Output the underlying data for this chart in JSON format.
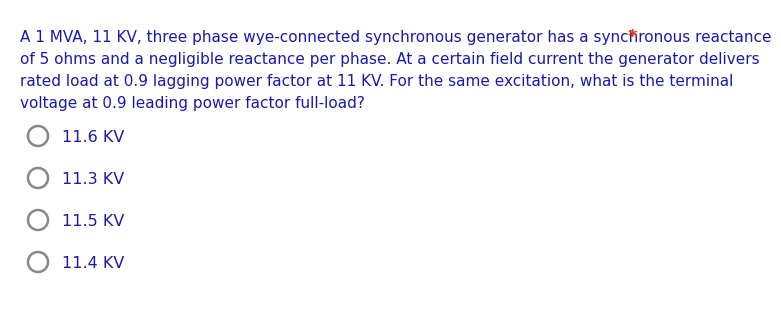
{
  "background_color": "#ffffff",
  "question_text_lines": [
    "A 1 MVA, 11 KV, three phase wye-connected synchronous generator has a synchronous reactance",
    "of 5 ohms and a negligible reactance per phase. At a certain field current the generator delivers",
    "rated load at 0.9 lagging power factor at 11 KV. For the same excitation, what is the terminal",
    "voltage at 0.9 leading power factor full-load?"
  ],
  "question_color": "#1a1aaa",
  "asterisk": "*",
  "asterisk_color": "#ff3300",
  "options": [
    "11.6 KV",
    "11.3 KV",
    "11.5 KV",
    "11.4 KV"
  ],
  "options_color": "#1a1aaa",
  "option_font_size": 11.5,
  "question_font_size": 11.0,
  "circle_color": "#888888",
  "circle_linewidth": 1.8,
  "asterisk_fontsize": 13
}
